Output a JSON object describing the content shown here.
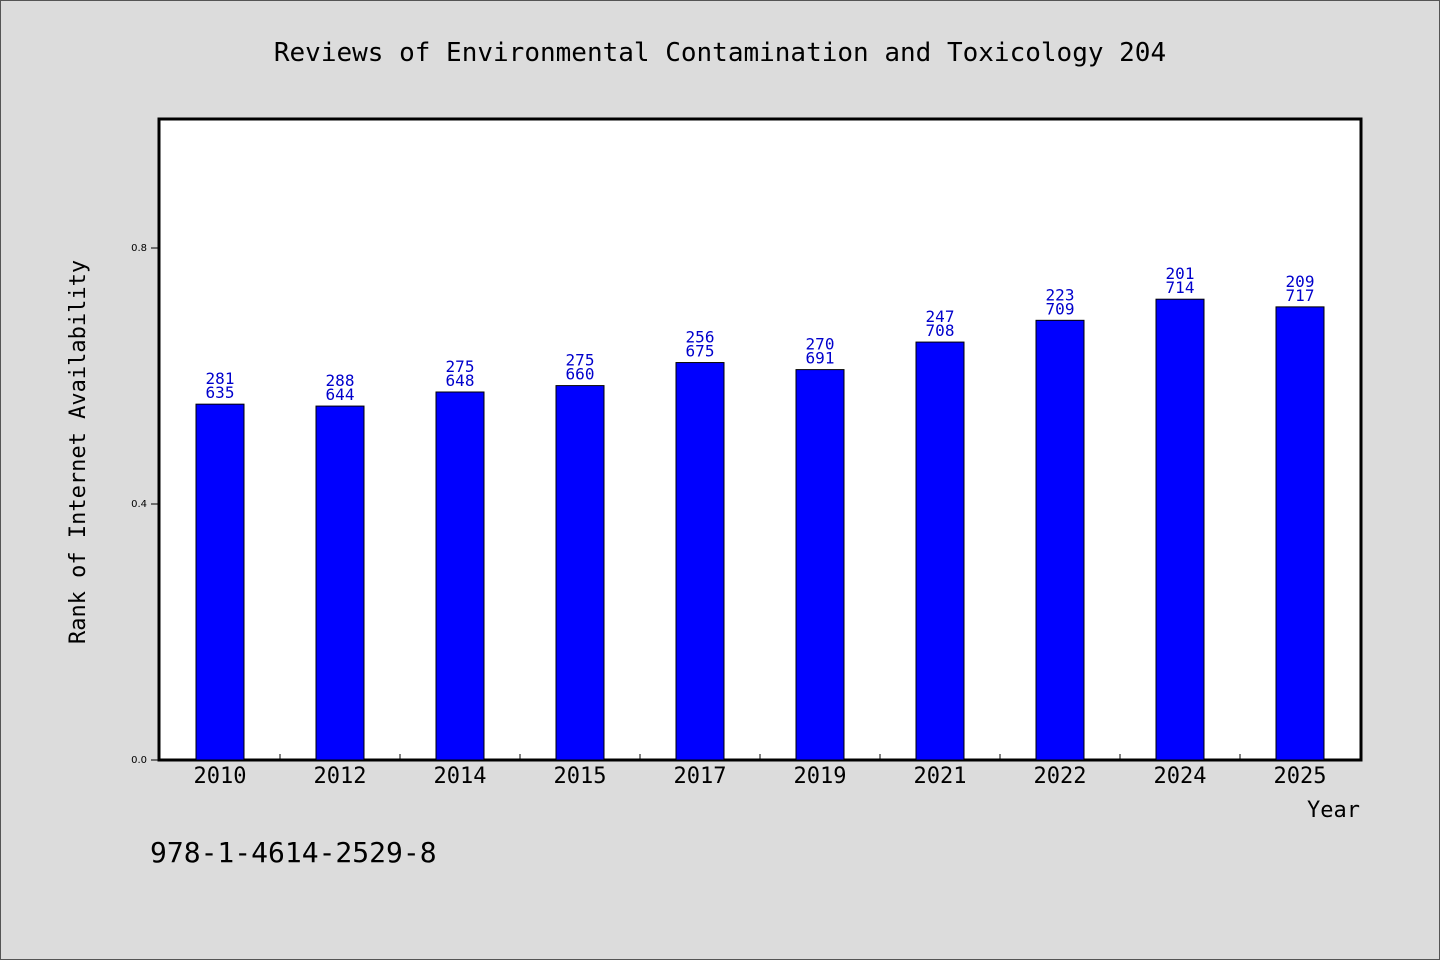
{
  "chart_data": {
    "type": "bar",
    "title": "Reviews of Environmental Contamination and Toxicology 204",
    "xlabel": "Year",
    "ylabel": "Rank of Internet Availability",
    "categories": [
      "2010",
      "2012",
      "2014",
      "2015",
      "2017",
      "2019",
      "2021",
      "2022",
      "2024",
      "2025"
    ],
    "values": [
      0.556,
      0.553,
      0.575,
      0.585,
      0.621,
      0.61,
      0.653,
      0.687,
      0.72,
      0.708
    ],
    "label_top": [
      "281",
      "288",
      "275",
      "275",
      "256",
      "270",
      "247",
      "223",
      "201",
      "209"
    ],
    "label_bottom": [
      "635",
      "644",
      "648",
      "660",
      "675",
      "691",
      "708",
      "709",
      "714",
      "717"
    ],
    "ylim": [
      0,
      1.0
    ],
    "yticks": [
      0.0,
      0.4,
      0.8
    ],
    "ytick_labels": [
      "0.0",
      "0.4",
      "0.8"
    ],
    "bar_color": "#0000ff",
    "label_color": "#0000cc",
    "grid": false,
    "legend": "none"
  },
  "footer": {
    "isbn": "978-1-4614-2529-8"
  }
}
